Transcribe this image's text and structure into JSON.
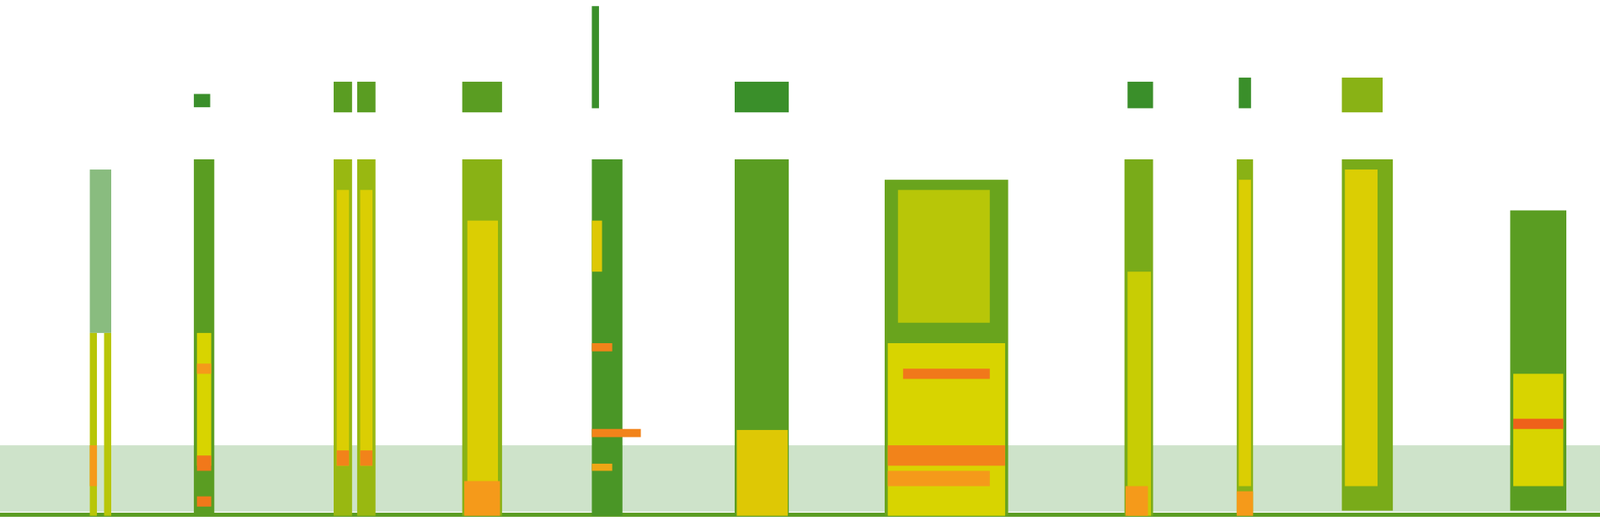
{
  "chart_data": {
    "type": "heatmap",
    "tick_labels": false,
    "grid": false,
    "xlim": [
      0,
      1568
    ],
    "ylim": [
      0,
      516
    ],
    "zlim": [
      0,
      4
    ],
    "cells": [
      {
        "x1": 0,
        "x2": 1568,
        "y1": 15,
        "y2": 80,
        "value": 0.25
      },
      {
        "x1": 0,
        "x2": 1568,
        "y1": 10,
        "y2": 14,
        "value": 1.2
      },
      {
        "x1": 88,
        "x2": 109,
        "y1": 190,
        "y2": 350,
        "value": 0.6
      },
      {
        "x1": 88,
        "x2": 95,
        "y1": 11,
        "y2": 190,
        "value": 1.8
      },
      {
        "x1": 102,
        "x2": 109,
        "y1": 11,
        "y2": 190,
        "value": 1.8
      },
      {
        "x1": 88,
        "x2": 95,
        "y1": 40,
        "y2": 80,
        "value": 3
      },
      {
        "x1": 190,
        "x2": 210,
        "y1": 11,
        "y2": 360,
        "value": 1.2
      },
      {
        "x1": 193,
        "x2": 207,
        "y1": 60,
        "y2": 190,
        "value": 2
      },
      {
        "x1": 193,
        "x2": 207,
        "y1": 20,
        "y2": 30,
        "value": 3.3
      },
      {
        "x1": 193,
        "x2": 207,
        "y1": 55,
        "y2": 70,
        "value": 3.3
      },
      {
        "x1": 193,
        "x2": 207,
        "y1": 150,
        "y2": 160,
        "value": 3
      },
      {
        "x1": 190,
        "x2": 206,
        "y1": 411,
        "y2": 424,
        "value": 1
      },
      {
        "x1": 327,
        "x2": 345,
        "y1": 11,
        "y2": 360,
        "value": 1.6
      },
      {
        "x1": 350,
        "x2": 368,
        "y1": 11,
        "y2": 360,
        "value": 1.6
      },
      {
        "x1": 330,
        "x2": 342,
        "y1": 60,
        "y2": 330,
        "value": 2.1
      },
      {
        "x1": 353,
        "x2": 365,
        "y1": 60,
        "y2": 330,
        "value": 2.1
      },
      {
        "x1": 330,
        "x2": 342,
        "y1": 60,
        "y2": 75,
        "value": 3.2
      },
      {
        "x1": 353,
        "x2": 365,
        "y1": 60,
        "y2": 75,
        "value": 3.2
      },
      {
        "x1": 327,
        "x2": 345,
        "y1": 406,
        "y2": 436,
        "value": 1.2
      },
      {
        "x1": 350,
        "x2": 368,
        "y1": 406,
        "y2": 436,
        "value": 1.2
      },
      {
        "x1": 453,
        "x2": 492,
        "y1": 11,
        "y2": 360,
        "value": 1.5
      },
      {
        "x1": 458,
        "x2": 488,
        "y1": 40,
        "y2": 300,
        "value": 2.1
      },
      {
        "x1": 455,
        "x2": 490,
        "y1": 11,
        "y2": 45,
        "value": 3
      },
      {
        "x1": 453,
        "x2": 492,
        "y1": 406,
        "y2": 436,
        "value": 1.2
      },
      {
        "x1": 580,
        "x2": 610,
        "y1": 11,
        "y2": 360,
        "value": 1.1
      },
      {
        "x1": 580,
        "x2": 590,
        "y1": 250,
        "y2": 300,
        "value": 2.2
      },
      {
        "x1": 580,
        "x2": 628,
        "y1": 88,
        "y2": 96,
        "value": 3.2
      },
      {
        "x1": 580,
        "x2": 600,
        "y1": 172,
        "y2": 180,
        "value": 3.2
      },
      {
        "x1": 580,
        "x2": 600,
        "y1": 55,
        "y2": 62,
        "value": 2.8
      },
      {
        "x1": 580,
        "x2": 587,
        "y1": 410,
        "y2": 510,
        "value": 1
      },
      {
        "x1": 720,
        "x2": 773,
        "y1": 11,
        "y2": 360,
        "value": 1.2
      },
      {
        "x1": 722,
        "x2": 772,
        "y1": 11,
        "y2": 95,
        "value": 2.2
      },
      {
        "x1": 720,
        "x2": 773,
        "y1": 406,
        "y2": 436,
        "value": 1
      },
      {
        "x1": 867,
        "x2": 988,
        "y1": 11,
        "y2": 340,
        "value": 1.3
      },
      {
        "x1": 870,
        "x2": 985,
        "y1": 11,
        "y2": 180,
        "value": 2
      },
      {
        "x1": 880,
        "x2": 970,
        "y1": 200,
        "y2": 330,
        "value": 1.8
      },
      {
        "x1": 885,
        "x2": 970,
        "y1": 145,
        "y2": 155,
        "value": 3.3
      },
      {
        "x1": 870,
        "x2": 985,
        "y1": 60,
        "y2": 80,
        "value": 3.2
      },
      {
        "x1": 870,
        "x2": 970,
        "y1": 40,
        "y2": 55,
        "value": 3
      },
      {
        "x1": 1102,
        "x2": 1130,
        "y1": 11,
        "y2": 360,
        "value": 1.4
      },
      {
        "x1": 1105,
        "x2": 1128,
        "y1": 11,
        "y2": 250,
        "value": 1.9
      },
      {
        "x1": 1103,
        "x2": 1125,
        "y1": 11,
        "y2": 40,
        "value": 3
      },
      {
        "x1": 1105,
        "x2": 1130,
        "y1": 410,
        "y2": 436,
        "value": 1
      },
      {
        "x1": 1212,
        "x2": 1228,
        "y1": 11,
        "y2": 360,
        "value": 1.5
      },
      {
        "x1": 1214,
        "x2": 1226,
        "y1": 40,
        "y2": 340,
        "value": 2.1
      },
      {
        "x1": 1212,
        "x2": 1228,
        "y1": 11,
        "y2": 35,
        "value": 3
      },
      {
        "x1": 1214,
        "x2": 1226,
        "y1": 410,
        "y2": 440,
        "value": 1
      },
      {
        "x1": 1315,
        "x2": 1365,
        "y1": 16,
        "y2": 360,
        "value": 1.4
      },
      {
        "x1": 1318,
        "x2": 1350,
        "y1": 40,
        "y2": 350,
        "value": 2.1
      },
      {
        "x1": 1315,
        "x2": 1355,
        "y1": 406,
        "y2": 440,
        "value": 1.5
      },
      {
        "x1": 1480,
        "x2": 1535,
        "y1": 16,
        "y2": 310,
        "value": 1.2
      },
      {
        "x1": 1483,
        "x2": 1532,
        "y1": 40,
        "y2": 150,
        "value": 2
      },
      {
        "x1": 1483,
        "x2": 1532,
        "y1": 96,
        "y2": 106,
        "value": 3.5
      }
    ]
  }
}
